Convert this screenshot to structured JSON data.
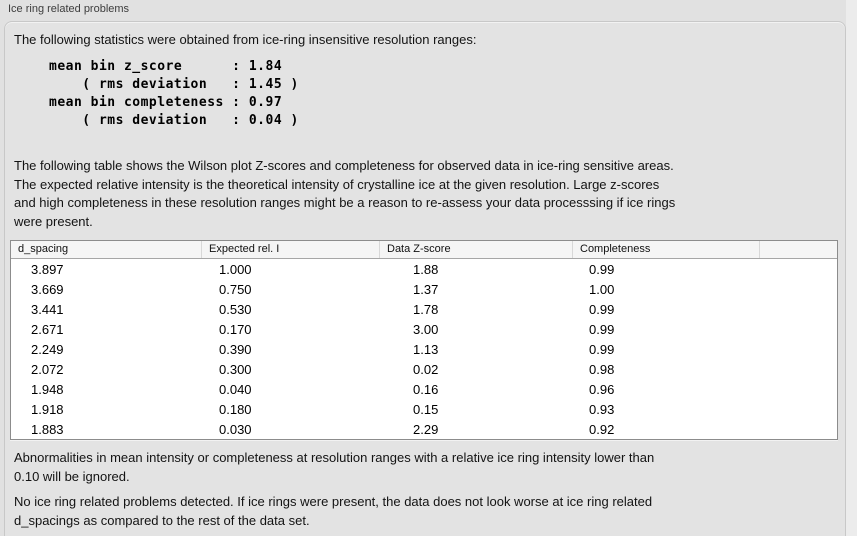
{
  "panel": {
    "title": "Ice ring related problems",
    "intro": "The following statistics were obtained from ice-ring insensitive resolution ranges:",
    "stats_lines": [
      "mean bin z_score      : 1.84",
      "    ( rms deviation   : 1.45 )",
      "mean bin completeness : 0.97",
      "    ( rms deviation   : 0.04 )"
    ],
    "description": "The following table shows the Wilson plot Z-scores and completeness for observed data in ice-ring sensitive areas.\nThe expected relative intensity is the theoretical intensity of crystalline ice at the given resolution. Large z-scores\nand high completeness in these resolution ranges might be a reason to re-assess your data processsing if ice rings\nwere present.",
    "ignore_note": "Abnormalities in mean intensity or completeness at resolution ranges with a relative ice ring intensity lower than\n0.10 will be ignored.",
    "conclusion": "No ice ring related problems detected. If ice rings were present, the data does not look worse at ice ring related\nd_spacings as compared to the rest of the data set."
  },
  "table": {
    "columns": [
      "d_spacing",
      "Expected rel. I",
      "Data Z-score",
      "Completeness"
    ],
    "rows": [
      [
        "3.897",
        "1.000",
        "1.88",
        "0.99"
      ],
      [
        "3.669",
        "0.750",
        "1.37",
        "1.00"
      ],
      [
        "3.441",
        "0.530",
        "1.78",
        "0.99"
      ],
      [
        "2.671",
        "0.170",
        "3.00",
        "0.99"
      ],
      [
        "2.249",
        "0.390",
        "1.13",
        "0.99"
      ],
      [
        "2.072",
        "0.300",
        "0.02",
        "0.98"
      ],
      [
        "1.948",
        "0.040",
        "0.16",
        "0.96"
      ],
      [
        "1.918",
        "0.180",
        "0.15",
        "0.93"
      ],
      [
        "1.883",
        "0.030",
        "2.29",
        "0.92"
      ]
    ]
  },
  "colors": {
    "panel_bg": "#e3e3e3",
    "window_bg": "#e1e1e1",
    "table_header_bg": "#f5f5f5",
    "table_body_bg": "#ffffff",
    "table_border": "#8c8c8c",
    "text": "#131313"
  }
}
